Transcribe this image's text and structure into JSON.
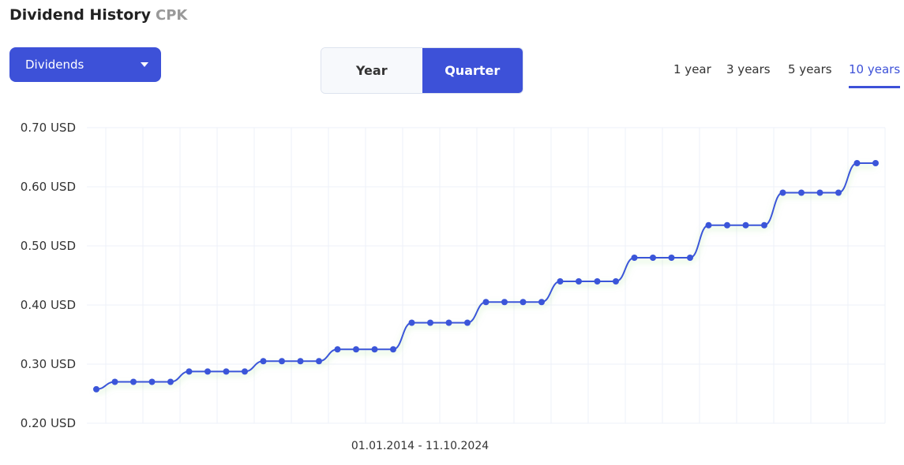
{
  "header": {
    "title": "Dividend History",
    "ticker": "CPK"
  },
  "dropdown": {
    "label": "Dividends"
  },
  "period_toggle": {
    "options": [
      "Year",
      "Quarter"
    ],
    "active": 1
  },
  "ranges": {
    "options": [
      "1 year",
      "3 years",
      "5 years",
      "10 years"
    ],
    "active": 3
  },
  "chart_data": {
    "type": "line",
    "x_label": "01.01.2014 - 11.10.2024",
    "series": [
      {
        "color": "#3b55d9",
        "values": [
          0.2575,
          0.27,
          0.27,
          0.27,
          0.27,
          0.2875,
          0.2875,
          0.2875,
          0.2875,
          0.305,
          0.305,
          0.305,
          0.305,
          0.325,
          0.325,
          0.325,
          0.325,
          0.37,
          0.37,
          0.37,
          0.37,
          0.405,
          0.405,
          0.405,
          0.405,
          0.44,
          0.44,
          0.44,
          0.44,
          0.48,
          0.48,
          0.48,
          0.48,
          0.535,
          0.535,
          0.535,
          0.535,
          0.59,
          0.59,
          0.59,
          0.59,
          0.64,
          0.64
        ]
      }
    ],
    "ylim": [
      0.2,
      0.7
    ],
    "yticks": [
      {
        "value": 0.2,
        "label": "0.20 USD"
      },
      {
        "value": 0.3,
        "label": "0.30 USD"
      },
      {
        "value": 0.4,
        "label": "0.40 USD"
      },
      {
        "value": 0.5,
        "label": "0.50 USD"
      },
      {
        "value": 0.6,
        "label": "0.60 USD"
      },
      {
        "value": 0.7,
        "label": "0.70 USD"
      }
    ],
    "grid": true
  }
}
